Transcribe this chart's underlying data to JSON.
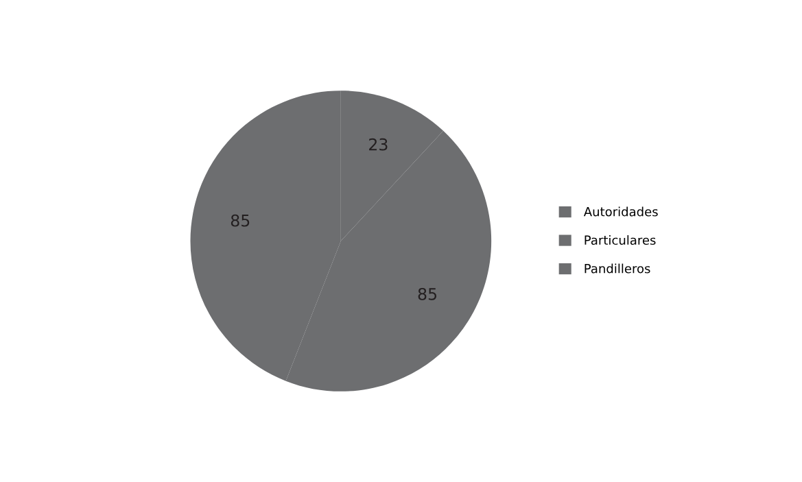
{
  "chart_data": {
    "type": "pie",
    "categories": [
      "Autoridades",
      "Particulares",
      "Pandilleros"
    ],
    "values": [
      23,
      85,
      85
    ],
    "colors": [
      "#6d6e70",
      "#6d6e70",
      "#6d6e70"
    ],
    "data_labels": true,
    "legend": "right"
  }
}
